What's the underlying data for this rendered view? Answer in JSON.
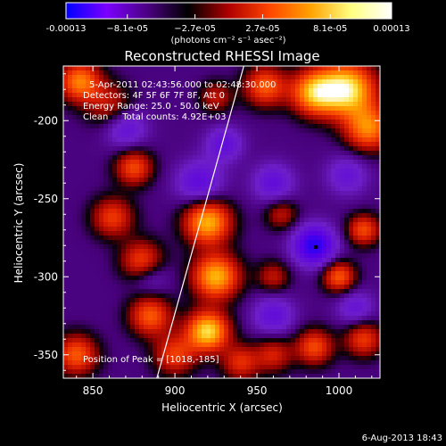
{
  "chart_data": {
    "type": "heatmap",
    "title": "Reconstructed RHESSI Image",
    "xlabel": "Heliocentric X (arcsec)",
    "ylabel": "Heliocentric Y (arcsec)",
    "xlim": [
      832,
      1025
    ],
    "ylim": [
      -365,
      -165
    ],
    "xticks": [
      850,
      900,
      950,
      1000
    ],
    "yticks": [
      -200,
      -250,
      -300,
      -350
    ],
    "colorbar": {
      "min": -0.00013,
      "max": 0.00013,
      "ticks": [
        "-0.00013",
        "−8.1e-05",
        "−2.7e-05",
        "2.7e-05",
        "8.1e-05",
        "0.00013"
      ],
      "tick_values": [
        -0.00013,
        -8.1e-05,
        -2.7e-05,
        2.7e-05,
        8.1e-05,
        0.00013
      ],
      "unit_label": "(photons cm⁻² s⁻¹ asec⁻²)",
      "colors": [
        "#0000ff",
        "#7b00ff",
        "#4b0082",
        "#000000",
        "#b00000",
        "#ff4500",
        "#ffa000",
        "#ffff80",
        "#ffffff"
      ]
    },
    "annotations": [
      "5-Apr-2011 02:43:56.000 to 02:48:30.000",
      "Detectors: 4F 5F 6F 7F 8F, Att 0",
      "Energy Range: 25.0 - 50.0 keV",
      "Clean     Total counts: 4.92E+03"
    ],
    "peak_label": "Position of Peak = [1018,-185]",
    "peak": [
      1018,
      -185
    ],
    "limb_line": {
      "points": [
        [
          889,
          -365
        ],
        [
          942,
          -165
        ]
      ],
      "color": "#ffffff"
    },
    "marker_point": [
      986,
      -281
    ],
    "blobs": [
      {
        "x": 1005,
        "y": -180,
        "v": 1.0,
        "s": 12
      },
      {
        "x": 985,
        "y": -182,
        "v": 0.8,
        "s": 10
      },
      {
        "x": 1018,
        "y": -205,
        "v": 0.7,
        "s": 10
      },
      {
        "x": 955,
        "y": -178,
        "v": 0.6,
        "s": 9
      },
      {
        "x": 842,
        "y": -175,
        "v": 0.7,
        "s": 9
      },
      {
        "x": 860,
        "y": -190,
        "v": 0.35,
        "s": 10
      },
      {
        "x": 875,
        "y": -230,
        "v": 0.55,
        "s": 8
      },
      {
        "x": 862,
        "y": -262,
        "v": 0.5,
        "s": 9
      },
      {
        "x": 880,
        "y": -290,
        "v": 0.55,
        "s": 9
      },
      {
        "x": 920,
        "y": -265,
        "v": 0.85,
        "s": 10
      },
      {
        "x": 925,
        "y": -300,
        "v": 0.85,
        "s": 10
      },
      {
        "x": 920,
        "y": -335,
        "v": 0.95,
        "s": 9
      },
      {
        "x": 885,
        "y": -325,
        "v": 0.6,
        "s": 9
      },
      {
        "x": 900,
        "y": -350,
        "v": 0.5,
        "s": 9
      },
      {
        "x": 940,
        "y": -355,
        "v": 0.45,
        "s": 8
      },
      {
        "x": 840,
        "y": -350,
        "v": 0.6,
        "s": 9
      },
      {
        "x": 960,
        "y": -300,
        "v": 0.35,
        "s": 7
      },
      {
        "x": 1000,
        "y": -300,
        "v": 0.6,
        "s": 7
      },
      {
        "x": 1015,
        "y": -270,
        "v": 0.55,
        "s": 7
      },
      {
        "x": 960,
        "y": -350,
        "v": 0.4,
        "s": 8
      },
      {
        "x": 985,
        "y": -345,
        "v": 0.55,
        "s": 8
      },
      {
        "x": 1015,
        "y": -340,
        "v": 0.5,
        "s": 8
      },
      {
        "x": 965,
        "y": -260,
        "v": 0.35,
        "s": 7
      },
      {
        "x": 925,
        "y": -185,
        "v": 0.35,
        "s": 7
      },
      {
        "x": 870,
        "y": -205,
        "v": -0.35,
        "s": 9
      },
      {
        "x": 915,
        "y": -240,
        "v": -0.4,
        "s": 10
      },
      {
        "x": 930,
        "y": -215,
        "v": -0.35,
        "s": 8
      },
      {
        "x": 985,
        "y": -280,
        "v": -0.7,
        "s": 9
      },
      {
        "x": 960,
        "y": -240,
        "v": -0.35,
        "s": 9
      },
      {
        "x": 1005,
        "y": -235,
        "v": -0.3,
        "s": 9
      },
      {
        "x": 960,
        "y": -325,
        "v": -0.35,
        "s": 9
      },
      {
        "x": 885,
        "y": -300,
        "v": -0.25,
        "s": 8
      },
      {
        "x": 1010,
        "y": -320,
        "v": -0.3,
        "s": 8
      }
    ]
  },
  "footer": {
    "date": "6-Aug-2013 18:43"
  }
}
